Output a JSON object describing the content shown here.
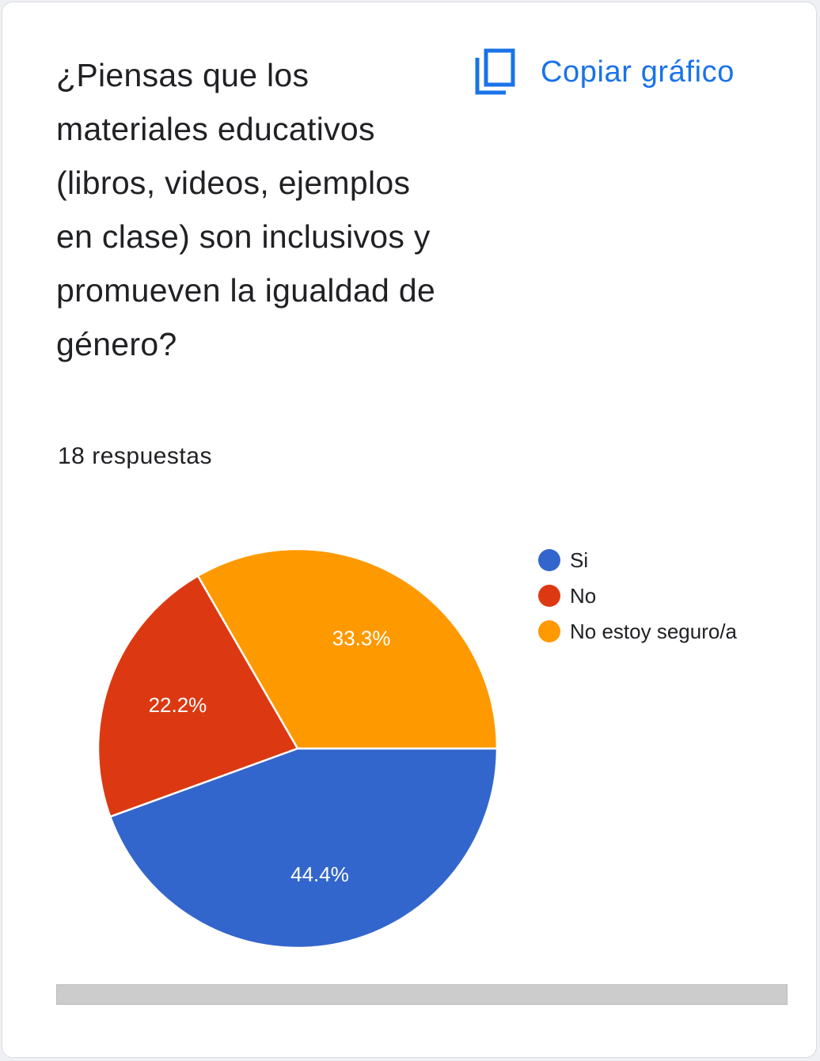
{
  "question": "¿Piensas que los materiales educativos (libros, videos, ejemplos en clase) son inclusivos y promueven la igualdad de género?",
  "response_count": "18 respuestas",
  "copy_button": {
    "label": "Copiar gráfico",
    "icon": "copy-icon"
  },
  "colors": {
    "accent": "#1a73e8",
    "slice_si": "#3366cc",
    "slice_no": "#dc3912",
    "slice_unsure": "#ff9900"
  },
  "chart_data": {
    "type": "pie",
    "total_responses": 18,
    "categories": [
      "Si",
      "No",
      "No estoy seguro/a"
    ],
    "values": [
      44.4,
      22.2,
      33.3
    ],
    "labels": [
      "44.4%",
      "22.2%",
      "33.3%"
    ],
    "legend_position": "right"
  }
}
